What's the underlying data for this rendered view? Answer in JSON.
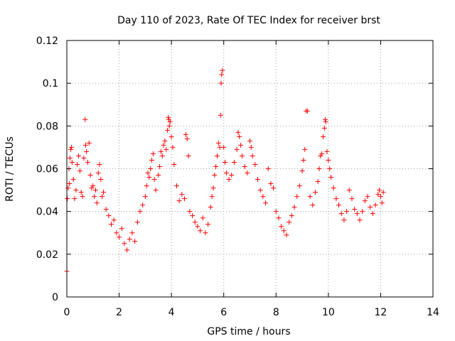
{
  "chart_data": {
    "type": "scatter",
    "title": "Day 110 of 2023, Rate Of TEC Index for receiver brst",
    "xlabel": "GPS time / hours",
    "ylabel": "ROTI / TECUs",
    "xlim": [
      0,
      14
    ],
    "ylim": [
      0,
      0.12
    ],
    "x_ticks": [
      0,
      2,
      4,
      6,
      8,
      10,
      12,
      14
    ],
    "x_tick_labels": [
      "0",
      "2",
      "4",
      "6",
      "8",
      "10",
      "12",
      "14"
    ],
    "y_ticks": [
      0,
      0.02,
      0.04,
      0.06,
      0.08,
      0.1,
      0.12
    ],
    "y_tick_labels": [
      "0",
      "0.02",
      "0.04",
      "0.06",
      "0.08",
      "0.1",
      "0.12"
    ],
    "grid": true,
    "legend": "none",
    "marker": "+",
    "marker_color": "#ff0000",
    "series": [
      {
        "points": [
          [
            0.0,
            0.012
          ],
          [
            0.02,
            0.046
          ],
          [
            0.05,
            0.051
          ],
          [
            0.08,
            0.06
          ],
          [
            0.1,
            0.053
          ],
          [
            0.12,
            0.065
          ],
          [
            0.15,
            0.069
          ],
          [
            0.18,
            0.07
          ],
          [
            0.2,
            0.063
          ],
          [
            0.25,
            0.055
          ],
          [
            0.3,
            0.046
          ],
          [
            0.35,
            0.05
          ],
          [
            0.4,
            0.062
          ],
          [
            0.45,
            0.066
          ],
          [
            0.5,
            0.059
          ],
          [
            0.55,
            0.049
          ],
          [
            0.6,
            0.047
          ],
          [
            0.65,
            0.065
          ],
          [
            0.7,
            0.083
          ],
          [
            0.72,
            0.071
          ],
          [
            0.75,
            0.068
          ],
          [
            0.8,
            0.063
          ],
          [
            0.85,
            0.072
          ],
          [
            0.9,
            0.057
          ],
          [
            0.95,
            0.051
          ],
          [
            1.0,
            0.052
          ],
          [
            1.05,
            0.047
          ],
          [
            1.1,
            0.05
          ],
          [
            1.15,
            0.044
          ],
          [
            1.2,
            0.058
          ],
          [
            1.25,
            0.062
          ],
          [
            1.3,
            0.055
          ],
          [
            1.35,
            0.047
          ],
          [
            1.4,
            0.049
          ],
          [
            1.5,
            0.041
          ],
          [
            1.6,
            0.038
          ],
          [
            1.7,
            0.034
          ],
          [
            1.8,
            0.036
          ],
          [
            1.9,
            0.03
          ],
          [
            2.0,
            0.028
          ],
          [
            2.1,
            0.032
          ],
          [
            2.2,
            0.025
          ],
          [
            2.3,
            0.022
          ],
          [
            2.4,
            0.027
          ],
          [
            2.5,
            0.03
          ],
          [
            2.6,
            0.026
          ],
          [
            2.7,
            0.035
          ],
          [
            2.8,
            0.04
          ],
          [
            2.9,
            0.043
          ],
          [
            3.0,
            0.047
          ],
          [
            3.05,
            0.052
          ],
          [
            3.1,
            0.058
          ],
          [
            3.15,
            0.056
          ],
          [
            3.2,
            0.06
          ],
          [
            3.25,
            0.064
          ],
          [
            3.3,
            0.067
          ],
          [
            3.35,
            0.055
          ],
          [
            3.4,
            0.05
          ],
          [
            3.5,
            0.057
          ],
          [
            3.55,
            0.061
          ],
          [
            3.6,
            0.068
          ],
          [
            3.65,
            0.066
          ],
          [
            3.7,
            0.071
          ],
          [
            3.75,
            0.073
          ],
          [
            3.8,
            0.069
          ],
          [
            3.85,
            0.078
          ],
          [
            3.88,
            0.084
          ],
          [
            3.9,
            0.083
          ],
          [
            3.92,
            0.08
          ],
          [
            3.95,
            0.082
          ],
          [
            4.0,
            0.075
          ],
          [
            4.05,
            0.07
          ],
          [
            4.1,
            0.062
          ],
          [
            4.2,
            0.052
          ],
          [
            4.3,
            0.045
          ],
          [
            4.4,
            0.048
          ],
          [
            4.5,
            0.046
          ],
          [
            4.55,
            0.076
          ],
          [
            4.6,
            0.074
          ],
          [
            4.65,
            0.066
          ],
          [
            4.7,
            0.04
          ],
          [
            4.8,
            0.038
          ],
          [
            4.9,
            0.035
          ],
          [
            5.0,
            0.033
          ],
          [
            5.1,
            0.031
          ],
          [
            5.2,
            0.037
          ],
          [
            5.3,
            0.03
          ],
          [
            5.4,
            0.034
          ],
          [
            5.5,
            0.042
          ],
          [
            5.55,
            0.047
          ],
          [
            5.6,
            0.051
          ],
          [
            5.65,
            0.057
          ],
          [
            5.7,
            0.061
          ],
          [
            5.75,
            0.066
          ],
          [
            5.8,
            0.072
          ],
          [
            5.85,
            0.07
          ],
          [
            5.88,
            0.085
          ],
          [
            5.9,
            0.1
          ],
          [
            5.92,
            0.104
          ],
          [
            5.95,
            0.106
          ],
          [
            6.0,
            0.07
          ],
          [
            6.05,
            0.063
          ],
          [
            6.1,
            0.058
          ],
          [
            6.2,
            0.055
          ],
          [
            6.3,
            0.057
          ],
          [
            6.4,
            0.063
          ],
          [
            6.5,
            0.069
          ],
          [
            6.55,
            0.077
          ],
          [
            6.6,
            0.075
          ],
          [
            6.65,
            0.071
          ],
          [
            6.7,
            0.066
          ],
          [
            6.8,
            0.061
          ],
          [
            6.9,
            0.058
          ],
          [
            7.0,
            0.073
          ],
          [
            7.05,
            0.07
          ],
          [
            7.1,
            0.066
          ],
          [
            7.2,
            0.062
          ],
          [
            7.3,
            0.055
          ],
          [
            7.4,
            0.05
          ],
          [
            7.5,
            0.047
          ],
          [
            7.6,
            0.044
          ],
          [
            7.7,
            0.06
          ],
          [
            7.8,
            0.053
          ],
          [
            7.9,
            0.051
          ],
          [
            8.0,
            0.04
          ],
          [
            8.1,
            0.037
          ],
          [
            8.2,
            0.033
          ],
          [
            8.3,
            0.031
          ],
          [
            8.4,
            0.029
          ],
          [
            8.5,
            0.035
          ],
          [
            8.6,
            0.038
          ],
          [
            8.7,
            0.042
          ],
          [
            8.8,
            0.047
          ],
          [
            8.9,
            0.052
          ],
          [
            9.0,
            0.059
          ],
          [
            9.05,
            0.064
          ],
          [
            9.1,
            0.069
          ],
          [
            9.15,
            0.087
          ],
          [
            9.2,
            0.087
          ],
          [
            9.3,
            0.047
          ],
          [
            9.4,
            0.043
          ],
          [
            9.5,
            0.049
          ],
          [
            9.6,
            0.054
          ],
          [
            9.65,
            0.06
          ],
          [
            9.7,
            0.066
          ],
          [
            9.75,
            0.067
          ],
          [
            9.8,
            0.075
          ],
          [
            9.85,
            0.079
          ],
          [
            9.88,
            0.083
          ],
          [
            9.9,
            0.082
          ],
          [
            9.95,
            0.068
          ],
          [
            10.0,
            0.064
          ],
          [
            10.05,
            0.06
          ],
          [
            10.1,
            0.056
          ],
          [
            10.2,
            0.051
          ],
          [
            10.3,
            0.046
          ],
          [
            10.4,
            0.043
          ],
          [
            10.5,
            0.039
          ],
          [
            10.6,
            0.036
          ],
          [
            10.7,
            0.04
          ],
          [
            10.8,
            0.05
          ],
          [
            10.9,
            0.046
          ],
          [
            11.0,
            0.041
          ],
          [
            11.1,
            0.039
          ],
          [
            11.2,
            0.036
          ],
          [
            11.3,
            0.04
          ],
          [
            11.4,
            0.045
          ],
          [
            11.5,
            0.047
          ],
          [
            11.6,
            0.042
          ],
          [
            11.7,
            0.039
          ],
          [
            11.8,
            0.043
          ],
          [
            11.9,
            0.048
          ],
          [
            11.95,
            0.05
          ],
          [
            12.0,
            0.047
          ],
          [
            12.05,
            0.044
          ],
          [
            12.1,
            0.049
          ]
        ]
      }
    ]
  }
}
